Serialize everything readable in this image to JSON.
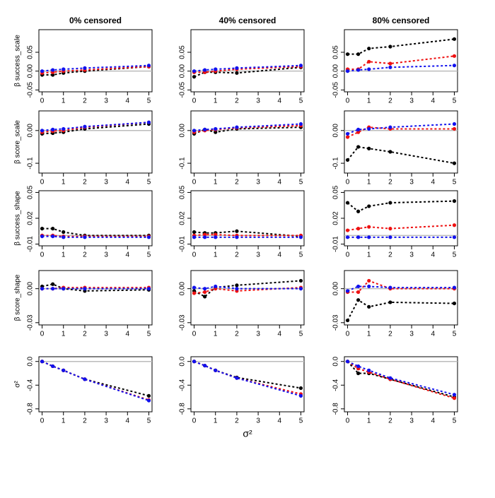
{
  "chart_data": [
    {
      "type": "line",
      "title": "0% censored",
      "ylabel": "β success_scale",
      "x": [
        0,
        0.5,
        1,
        2,
        5
      ],
      "xlim": [
        -0.15,
        5.15
      ],
      "xticks": [
        0,
        1,
        2,
        3,
        4,
        5
      ],
      "ylim": [
        -0.055,
        0.11
      ],
      "yticks": [
        -0.05,
        {
          "value": 0,
          "label": "0.00"
        },
        0.05
      ],
      "reference_line": 0,
      "reference_color": "#bbbbbb",
      "series": [
        {
          "color": "#000000",
          "values": [
            -0.01,
            -0.01,
            -0.005,
            0,
            0.012
          ]
        },
        {
          "color": "#ee1111",
          "values": [
            -0.005,
            -0.003,
            0,
            0.003,
            0.012
          ]
        },
        {
          "color": "#1111ee",
          "values": [
            0,
            0.003,
            0.005,
            0.008,
            0.015
          ]
        }
      ]
    },
    {
      "type": "line",
      "title": "40% censored",
      "x": [
        0,
        0.5,
        1,
        2,
        5
      ],
      "xlim": [
        -0.15,
        5.15
      ],
      "xticks": [
        0,
        1,
        2,
        3,
        4,
        5
      ],
      "ylim": [
        -0.055,
        0.11
      ],
      "yticks": [
        -0.05,
        {
          "value": 0,
          "label": "0.00"
        },
        0.05
      ],
      "reference_line": 0,
      "reference_color": "#bbbbbb",
      "series": [
        {
          "color": "#000000",
          "values": [
            -0.015,
            -0.003,
            -0.003,
            -0.005,
            0.01
          ]
        },
        {
          "color": "#ee1111",
          "values": [
            -0.003,
            -0.003,
            0,
            0.005,
            0.012
          ]
        },
        {
          "color": "#1111ee",
          "values": [
            0,
            0.003,
            0.005,
            0.008,
            0.015
          ]
        }
      ]
    },
    {
      "type": "line",
      "title": "80% censored",
      "x": [
        0,
        0.5,
        1,
        2,
        5
      ],
      "xlim": [
        -0.15,
        5.15
      ],
      "xticks": [
        0,
        1,
        2,
        3,
        4,
        5
      ],
      "ylim": [
        -0.055,
        0.11
      ],
      "yticks": [
        -0.05,
        {
          "value": 0,
          "label": "0.00"
        },
        0.05
      ],
      "reference_line": 0,
      "reference_color": "#bbbbbb",
      "series": [
        {
          "color": "#000000",
          "values": [
            0.045,
            0.045,
            0.06,
            0.065,
            0.085
          ]
        },
        {
          "color": "#ee1111",
          "values": [
            0.005,
            0.005,
            0.025,
            0.02,
            0.04
          ]
        },
        {
          "color": "#1111ee",
          "values": [
            0,
            0.003,
            0.005,
            0.01,
            0.015
          ]
        }
      ]
    },
    {
      "type": "line",
      "ylabel": "β score_scale",
      "x": [
        0,
        0.5,
        1,
        2,
        5
      ],
      "xlim": [
        -0.15,
        5.15
      ],
      "xticks": [
        0,
        1,
        2,
        3,
        4,
        5
      ],
      "ylim": [
        -0.13,
        0.06
      ],
      "yticks": [
        -0.1,
        {
          "value": 0,
          "label": "0.00"
        }
      ],
      "reference_line": 0,
      "reference_color": "#bbbbbb",
      "series": [
        {
          "color": "#000000",
          "values": [
            -0.01,
            -0.008,
            -0.005,
            0.005,
            0.02
          ]
        },
        {
          "color": "#ee1111",
          "values": [
            -0.005,
            -0.002,
            0,
            0.01,
            0.025
          ]
        },
        {
          "color": "#1111ee",
          "values": [
            0,
            0.003,
            0.005,
            0.012,
            0.025
          ]
        }
      ]
    },
    {
      "type": "line",
      "x": [
        0,
        0.5,
        1,
        2,
        5
      ],
      "xlim": [
        -0.15,
        5.15
      ],
      "xticks": [
        0,
        1,
        2,
        3,
        4,
        5
      ],
      "ylim": [
        -0.13,
        0.06
      ],
      "yticks": [
        -0.1,
        {
          "value": 0,
          "label": "0.00"
        }
      ],
      "reference_line": 0,
      "reference_color": "#bbbbbb",
      "series": [
        {
          "color": "#000000",
          "values": [
            -0.01,
            0.003,
            -0.005,
            0.005,
            0.01
          ]
        },
        {
          "color": "#ee1111",
          "values": [
            -0.005,
            0,
            0.003,
            0.008,
            0.015
          ]
        },
        {
          "color": "#1111ee",
          "values": [
            0,
            0.003,
            0.005,
            0.01,
            0.02
          ]
        }
      ]
    },
    {
      "type": "line",
      "x": [
        0,
        0.5,
        1,
        2,
        5
      ],
      "xlim": [
        -0.15,
        5.15
      ],
      "xticks": [
        0,
        1,
        2,
        3,
        4,
        5
      ],
      "ylim": [
        -0.13,
        0.06
      ],
      "yticks": [
        -0.1,
        {
          "value": 0,
          "label": "0.00"
        }
      ],
      "reference_line": 0,
      "reference_color": "#bbbbbb",
      "series": [
        {
          "color": "#000000",
          "values": [
            -0.09,
            -0.05,
            -0.055,
            -0.065,
            -0.1
          ]
        },
        {
          "color": "#ee1111",
          "values": [
            -0.02,
            -0.005,
            0.01,
            0.005,
            0.005
          ]
        },
        {
          "color": "#1111ee",
          "values": [
            -0.01,
            0.003,
            0.005,
            0.01,
            0.02
          ]
        }
      ]
    },
    {
      "type": "line",
      "ylabel": "β success_shape",
      "x": [
        0,
        0.5,
        1,
        2,
        5
      ],
      "xlim": [
        -0.15,
        5.15
      ],
      "xticks": [
        0,
        1,
        2,
        3,
        4,
        5
      ],
      "ylim": [
        -0.012,
        0.052
      ],
      "yticks": [
        -0.01,
        0.02,
        0.05
      ],
      "reference_line": 0,
      "reference_color": "#bbbbbb",
      "series": [
        {
          "color": "#000000",
          "values": [
            0.008,
            0.008,
            0.004,
            0,
            0
          ]
        },
        {
          "color": "#ee1111",
          "values": [
            0,
            0,
            -0.001,
            -0.001,
            -0.001
          ]
        },
        {
          "color": "#1111ee",
          "values": [
            -0.001,
            -0.001,
            -0.002,
            -0.002,
            -0.002
          ]
        }
      ]
    },
    {
      "type": "line",
      "x": [
        0,
        0.5,
        1,
        2,
        5
      ],
      "xlim": [
        -0.15,
        5.15
      ],
      "xticks": [
        0,
        1,
        2,
        3,
        4,
        5
      ],
      "ylim": [
        -0.012,
        0.052
      ],
      "yticks": [
        -0.01,
        0.02,
        0.05
      ],
      "reference_line": 0,
      "reference_color": "#bbbbbb",
      "series": [
        {
          "color": "#000000",
          "values": [
            0.004,
            0.003,
            0.003,
            0.005,
            -0.001
          ]
        },
        {
          "color": "#ee1111",
          "values": [
            0,
            0.001,
            0.001,
            0,
            0
          ]
        },
        {
          "color": "#1111ee",
          "values": [
            -0.002,
            -0.002,
            -0.002,
            -0.002,
            -0.002
          ]
        }
      ]
    },
    {
      "type": "line",
      "x": [
        0,
        0.5,
        1,
        2,
        5
      ],
      "xlim": [
        -0.15,
        5.15
      ],
      "xticks": [
        0,
        1,
        2,
        3,
        4,
        5
      ],
      "ylim": [
        -0.012,
        0.052
      ],
      "yticks": [
        -0.01,
        0.02,
        0.05
      ],
      "reference_line": 0,
      "reference_color": "#bbbbbb",
      "series": [
        {
          "color": "#000000",
          "values": [
            0.038,
            0.028,
            0.034,
            0.038,
            0.04
          ]
        },
        {
          "color": "#ee1111",
          "values": [
            0.006,
            0.008,
            0.01,
            0.008,
            0.012
          ]
        },
        {
          "color": "#1111ee",
          "values": [
            -0.002,
            -0.002,
            -0.002,
            -0.002,
            -0.002
          ]
        }
      ]
    },
    {
      "type": "line",
      "ylabel": "β score_shape",
      "x": [
        0,
        0.5,
        1,
        2,
        5
      ],
      "xlim": [
        -0.15,
        5.15
      ],
      "xticks": [
        0,
        1,
        2,
        3,
        4,
        5
      ],
      "ylim": [
        -0.032,
        0.016
      ],
      "yticks": [
        -0.03,
        {
          "value": 0,
          "label": "0.00"
        }
      ],
      "reference_line": 0,
      "reference_color": "#bbbbbb",
      "series": [
        {
          "color": "#000000",
          "values": [
            0.002,
            0.004,
            0,
            -0.002,
            -0.001
          ]
        },
        {
          "color": "#ee1111",
          "values": [
            0,
            0,
            0.001,
            0.001,
            0.001
          ]
        },
        {
          "color": "#1111ee",
          "values": [
            0,
            0,
            0,
            0,
            0
          ]
        }
      ]
    },
    {
      "type": "line",
      "x": [
        0,
        0.5,
        1,
        2,
        5
      ],
      "xlim": [
        -0.15,
        5.15
      ],
      "xticks": [
        0,
        1,
        2,
        3,
        4,
        5
      ],
      "ylim": [
        -0.032,
        0.016
      ],
      "yticks": [
        -0.03,
        {
          "value": 0,
          "label": "0.00"
        }
      ],
      "reference_line": 0,
      "reference_color": "#bbbbbb",
      "series": [
        {
          "color": "#000000",
          "values": [
            -0.002,
            -0.007,
            0.001,
            0.003,
            0.007
          ]
        },
        {
          "color": "#ee1111",
          "values": [
            -0.004,
            -0.003,
            0,
            -0.002,
            0.001
          ]
        },
        {
          "color": "#1111ee",
          "values": [
            0.001,
            0,
            0.002,
            0,
            0
          ]
        }
      ]
    },
    {
      "type": "line",
      "x": [
        0,
        0.5,
        1,
        2,
        5
      ],
      "xlim": [
        -0.15,
        5.15
      ],
      "xticks": [
        0,
        1,
        2,
        3,
        4,
        5
      ],
      "ylim": [
        -0.032,
        0.016
      ],
      "yticks": [
        -0.03,
        {
          "value": 0,
          "label": "0.00"
        }
      ],
      "reference_line": 0,
      "reference_color": "#bbbbbb",
      "series": [
        {
          "color": "#000000",
          "values": [
            -0.028,
            -0.01,
            -0.016,
            -0.012,
            -0.013
          ]
        },
        {
          "color": "#ee1111",
          "values": [
            -0.003,
            -0.003,
            0.007,
            0,
            0
          ]
        },
        {
          "color": "#1111ee",
          "values": [
            -0.002,
            0.002,
            0.002,
            0.001,
            0.001
          ]
        }
      ]
    },
    {
      "type": "line",
      "ylabel": "σ²",
      "x": [
        0,
        0.5,
        1,
        2,
        5
      ],
      "xlim": [
        -0.15,
        5.15
      ],
      "xticks": [
        0,
        1,
        2,
        3,
        4,
        5
      ],
      "ylim": [
        -0.85,
        0.08
      ],
      "yticks": [
        -0.8,
        -0.4,
        {
          "value": 0,
          "label": "0.0"
        }
      ],
      "reference_line": 0,
      "reference_color": "#bbbbbb",
      "series": [
        {
          "color": "#000000",
          "values": [
            0,
            -0.08,
            -0.15,
            -0.3,
            -0.58
          ]
        },
        {
          "color": "#ee1111",
          "values": [
            0,
            -0.08,
            -0.15,
            -0.3,
            -0.65
          ]
        },
        {
          "color": "#1111ee",
          "values": [
            0,
            -0.08,
            -0.15,
            -0.3,
            -0.66
          ]
        }
      ]
    },
    {
      "type": "line",
      "xlabel": "σ²",
      "x": [
        0,
        0.5,
        1,
        2,
        5
      ],
      "xlim": [
        -0.15,
        5.15
      ],
      "xticks": [
        0,
        1,
        2,
        3,
        4,
        5
      ],
      "ylim": [
        -0.85,
        0.08
      ],
      "yticks": [
        -0.8,
        -0.4,
        {
          "value": 0,
          "label": "0.0"
        }
      ],
      "reference_line": 0,
      "reference_color": "#bbbbbb",
      "series": [
        {
          "color": "#000000",
          "values": [
            0,
            -0.07,
            -0.15,
            -0.27,
            -0.45
          ]
        },
        {
          "color": "#ee1111",
          "values": [
            0,
            -0.07,
            -0.15,
            -0.28,
            -0.55
          ]
        },
        {
          "color": "#1111ee",
          "values": [
            0,
            -0.07,
            -0.15,
            -0.28,
            -0.58
          ]
        }
      ]
    },
    {
      "type": "line",
      "x": [
        0,
        0.5,
        1,
        2,
        5
      ],
      "xlim": [
        -0.15,
        5.15
      ],
      "xticks": [
        0,
        1,
        2,
        3,
        4,
        5
      ],
      "ylim": [
        -0.85,
        0.08
      ],
      "yticks": [
        -0.8,
        -0.4,
        {
          "value": 0,
          "label": "0.0"
        }
      ],
      "reference_line": 0,
      "reference_color": "#bbbbbb",
      "series": [
        {
          "color": "#000000",
          "values": [
            0,
            -0.2,
            -0.2,
            -0.3,
            -0.6
          ]
        },
        {
          "color": "#ee1111",
          "values": [
            0,
            -0.12,
            -0.18,
            -0.3,
            -0.62
          ]
        },
        {
          "color": "#1111ee",
          "values": [
            0,
            -0.08,
            -0.15,
            -0.28,
            -0.56
          ]
        }
      ]
    }
  ]
}
